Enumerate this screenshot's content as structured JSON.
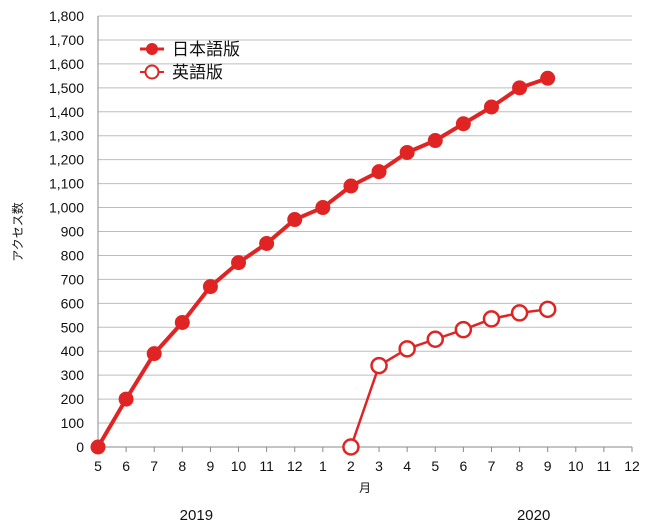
{
  "chart_data": {
    "type": "line",
    "xlabel": "月",
    "ylabel": "アクセス数",
    "ylim": [
      0,
      1800
    ],
    "yticks": [
      0,
      100,
      200,
      300,
      400,
      500,
      600,
      700,
      800,
      900,
      1000,
      1100,
      1200,
      1300,
      1400,
      1500,
      1600,
      1700,
      1800
    ],
    "ytick_labels": [
      "0",
      "100",
      "200",
      "300",
      "400",
      "500",
      "600",
      "700",
      "800",
      "900",
      "1,000",
      "1,100",
      "1,200",
      "1,300",
      "1,400",
      "1,500",
      "1,600",
      "1,700",
      "1,800"
    ],
    "categories": [
      "5",
      "6",
      "7",
      "8",
      "9",
      "10",
      "11",
      "12",
      "1",
      "2",
      "3",
      "4",
      "5",
      "6",
      "7",
      "8",
      "9",
      "10",
      "11",
      "12"
    ],
    "year_labels": [
      {
        "label": "2019",
        "center_category_index": 3.5
      },
      {
        "label": "2020",
        "center_category_index": 15.5
      }
    ],
    "grid": true,
    "legend_position": "top-left",
    "series": [
      {
        "name": "日本語版",
        "marker": "filled-circle",
        "color": "#e02424",
        "values": [
          0,
          200,
          390,
          520,
          670,
          770,
          850,
          950,
          1000,
          1090,
          1150,
          1230,
          1280,
          1350,
          1420,
          1500,
          1540,
          null,
          null,
          null
        ]
      },
      {
        "name": "英語版",
        "marker": "open-circle",
        "color": "#e02424",
        "values": [
          null,
          null,
          null,
          null,
          null,
          null,
          null,
          null,
          null,
          0,
          340,
          410,
          450,
          490,
          535,
          560,
          575,
          null,
          null,
          null
        ]
      }
    ]
  }
}
